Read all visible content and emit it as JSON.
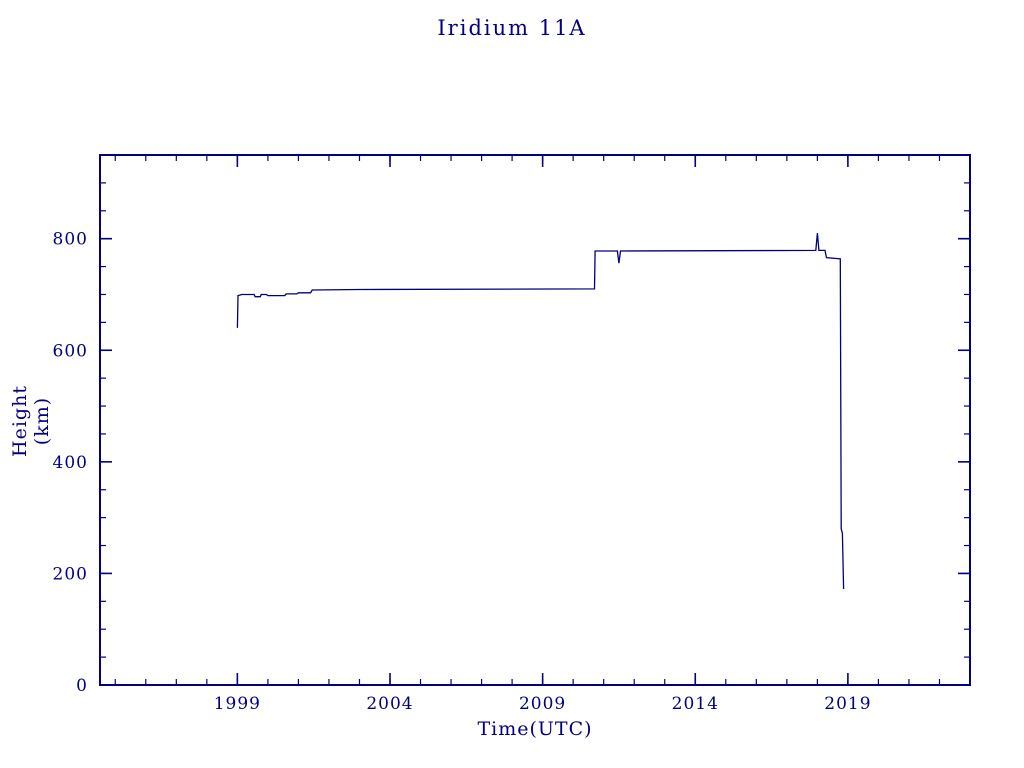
{
  "colors": {
    "plot": "#000080",
    "background": "#ffffff"
  },
  "chart_data": {
    "type": "line",
    "title": "Iridium 11A",
    "xlabel": "Time(UTC)",
    "ylabel": "Height (km)",
    "xlim": [
      1994.5,
      2023.0
    ],
    "ylim": [
      0,
      950
    ],
    "x_ticks": [
      1999,
      2004,
      2009,
      2014,
      2019
    ],
    "x_tick_labels": [
      "1999",
      "2004",
      "2009",
      "2014",
      "2019"
    ],
    "x_minor_step": 1,
    "y_ticks": [
      0,
      200,
      400,
      600,
      800
    ],
    "y_tick_labels": [
      "0",
      "200",
      "400",
      "600",
      "800"
    ],
    "y_minor_step": 50,
    "grid": false,
    "legend": "none",
    "line_color": "#000080",
    "series": [
      {
        "name": "height-km",
        "points": [
          [
            1999.0,
            640
          ],
          [
            1999.02,
            698
          ],
          [
            1999.15,
            700
          ],
          [
            1999.55,
            700
          ],
          [
            1999.58,
            696
          ],
          [
            1999.75,
            696
          ],
          [
            1999.78,
            700
          ],
          [
            1999.95,
            700
          ],
          [
            2000.0,
            698
          ],
          [
            2000.55,
            698
          ],
          [
            2000.6,
            701
          ],
          [
            2000.95,
            701
          ],
          [
            2001.0,
            703
          ],
          [
            2001.4,
            703
          ],
          [
            2001.45,
            708
          ],
          [
            2003.0,
            709
          ],
          [
            2010.7,
            710
          ],
          [
            2010.72,
            778
          ],
          [
            2011.45,
            778
          ],
          [
            2011.5,
            756
          ],
          [
            2011.55,
            778
          ],
          [
            2017.95,
            779
          ],
          [
            2018.0,
            810
          ],
          [
            2018.05,
            779
          ],
          [
            2018.25,
            779
          ],
          [
            2018.3,
            766
          ],
          [
            2018.75,
            764
          ],
          [
            2018.78,
            280
          ],
          [
            2018.82,
            272
          ],
          [
            2018.86,
            172
          ]
        ]
      }
    ]
  }
}
